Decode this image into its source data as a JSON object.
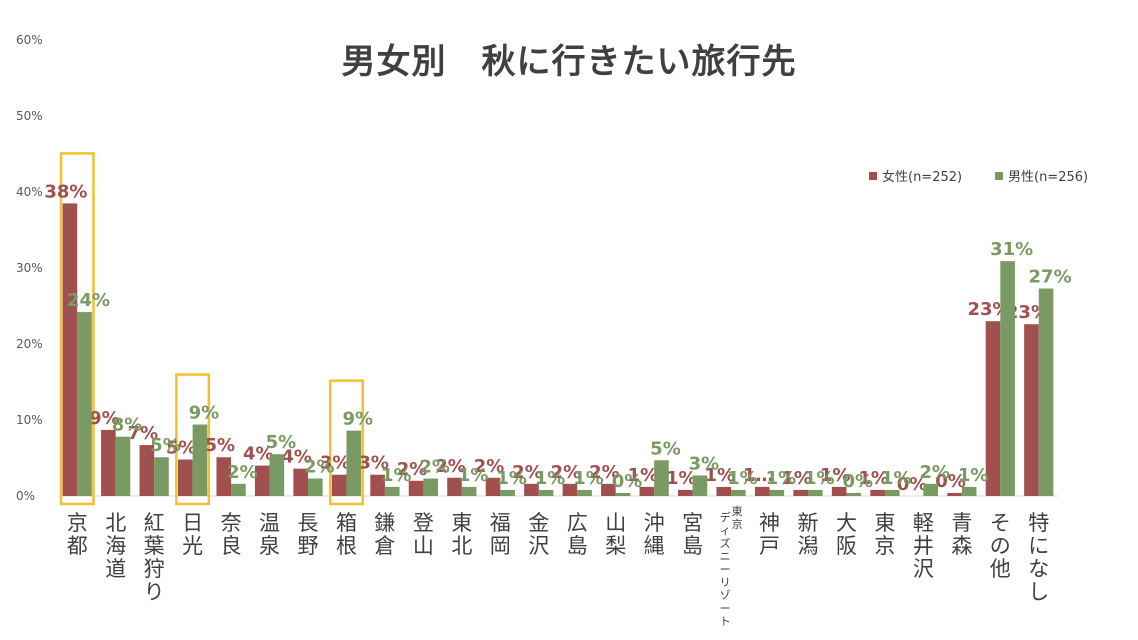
{
  "chart_data": {
    "type": "bar",
    "title": "男女別　秋に行きたい旅行先",
    "ylim": [
      0,
      60
    ],
    "yticks": [
      "0%",
      "10%",
      "20%",
      "30%",
      "40%",
      "50%",
      "60%"
    ],
    "legend_position": "top-right",
    "categories": [
      "京都",
      "北海道",
      "紅葉狩り",
      "日光",
      "奈良",
      "温泉",
      "長野",
      "箱根",
      "鎌倉",
      "登山",
      "東北",
      "福岡",
      "金沢",
      "広島",
      "山梨",
      "沖縄",
      "宮島",
      "東京ディズニーリゾート",
      "神戸",
      "新潟",
      "大阪",
      "東京",
      "軽井沢",
      "青森",
      "その他",
      "特になし"
    ],
    "category_lines": [
      [
        "京都"
      ],
      [
        "北海道"
      ],
      [
        "紅葉狩り"
      ],
      [
        "日光"
      ],
      [
        "奈良"
      ],
      [
        "温泉"
      ],
      [
        "長野"
      ],
      [
        "箱根"
      ],
      [
        "鎌倉"
      ],
      [
        "登山"
      ],
      [
        "東北"
      ],
      [
        "福岡"
      ],
      [
        "金沢"
      ],
      [
        "広島"
      ],
      [
        "山梨"
      ],
      [
        "沖縄"
      ],
      [
        "宮島"
      ],
      [
        "東京",
        "ディズニーリゾート"
      ],
      [
        "神戸"
      ],
      [
        "新潟"
      ],
      [
        "大阪"
      ],
      [
        "東京"
      ],
      [
        "軽井沢"
      ],
      [
        "青森"
      ],
      [
        "その他"
      ],
      [
        "特になし"
      ]
    ],
    "series": [
      {
        "name": "女性(n=252)",
        "color": "#a0504e",
        "values": [
          38.5,
          8.7,
          6.7,
          4.8,
          5.1,
          4.0,
          3.6,
          2.8,
          2.8,
          2.0,
          2.4,
          2.4,
          1.6,
          1.6,
          1.6,
          1.2,
          0.8,
          1.2,
          1.2,
          0.8,
          1.2,
          0.8,
          0.0,
          0.4,
          23.0,
          22.6
        ],
        "labels": [
          "38%",
          "9%",
          "7%",
          "5%",
          "5%",
          "4%",
          "4%",
          "3%",
          "3%",
          "2%",
          "2%",
          "2%",
          "2%",
          "2%",
          "2%",
          "1%",
          "1%",
          "1%",
          "1…",
          "1%",
          "1%",
          "1%",
          "0%",
          "0%",
          "23%",
          "23%"
        ]
      },
      {
        "name": "男性(n=256)",
        "color": "#7a9a64",
        "values": [
          24.2,
          7.8,
          5.1,
          9.4,
          1.6,
          5.5,
          2.3,
          8.6,
          1.2,
          2.3,
          1.2,
          0.8,
          0.8,
          0.8,
          0.4,
          4.7,
          2.7,
          0.8,
          0.8,
          0.8,
          0.4,
          0.8,
          1.6,
          1.2,
          30.9,
          27.3
        ],
        "labels": [
          "24%",
          "8%",
          "5%",
          "9%",
          "2%",
          "5%",
          "2%",
          "9%",
          "1%",
          "2%",
          "1%",
          "1%",
          "1%",
          "1%",
          "0%",
          "5%",
          "3%",
          "1%",
          "1%",
          "1%",
          "0%",
          "1%",
          "2%",
          "1%",
          "31%",
          "27%"
        ]
      }
    ],
    "highlighted_categories": [
      "京都",
      "日光",
      "箱根"
    ],
    "highlight_color": "#f2c12e"
  }
}
